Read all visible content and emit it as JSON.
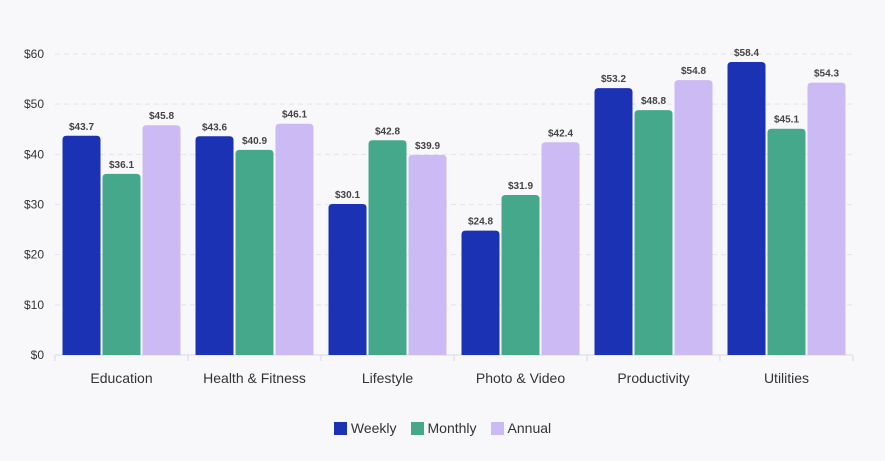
{
  "chart_data": {
    "type": "bar",
    "categories": [
      "Education",
      "Health & Fitness",
      "Lifestyle",
      "Photo & Video",
      "Productivity",
      "Utilities"
    ],
    "series": [
      {
        "name": "Weekly",
        "color": "#1c32b4",
        "values": [
          43.7,
          43.6,
          30.1,
          24.8,
          53.2,
          58.4
        ]
      },
      {
        "name": "Monthly",
        "color": "#45a88b",
        "values": [
          36.1,
          40.9,
          42.8,
          31.9,
          48.8,
          45.1
        ]
      },
      {
        "name": "Annual",
        "color": "#cbbaf3",
        "values": [
          45.8,
          46.1,
          39.9,
          42.4,
          54.8,
          54.3
        ]
      }
    ],
    "ylim": [
      0,
      60
    ],
    "yticks": [
      0,
      10,
      20,
      30,
      40,
      50,
      60
    ],
    "ytick_prefix": "$",
    "value_label_prefix": "$",
    "grid": true,
    "legend_position": "bottom-center"
  }
}
